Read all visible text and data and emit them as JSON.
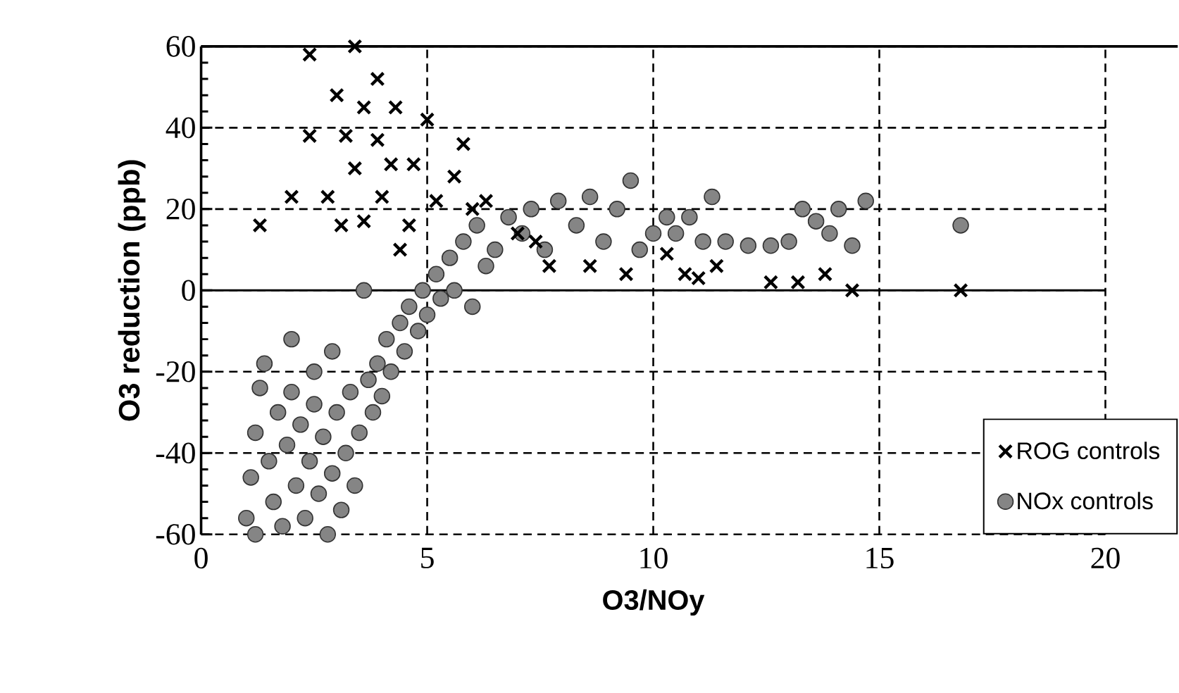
{
  "chart_data": {
    "type": "scatter",
    "xlabel": "O3/NOy",
    "ylabel": "O3 reduction  (ppb)",
    "xlim": [
      0,
      20
    ],
    "ylim": [
      -60,
      60
    ],
    "xticks": [
      0,
      5,
      10,
      15,
      20
    ],
    "yticks": [
      -60,
      -40,
      -20,
      0,
      20,
      40,
      60
    ],
    "grid": true,
    "legend": "bottom right",
    "ref_lines": [
      {
        "axis": "y",
        "value": 0,
        "color": "#000000",
        "line_style": "solid"
      }
    ],
    "series": [
      {
        "name": "ROG controls",
        "color": "#000000",
        "marker": "cross",
        "x": [
          1.3,
          2.0,
          2.4,
          2.4,
          2.8,
          3.0,
          3.1,
          3.2,
          3.4,
          3.4,
          3.6,
          3.6,
          3.9,
          3.9,
          4.0,
          4.2,
          4.3,
          4.4,
          4.6,
          4.7,
          5.0,
          5.2,
          5.6,
          5.8,
          6.0,
          6.3,
          7.0,
          7.4,
          7.7,
          8.6,
          9.4,
          10.3,
          10.7,
          11.0,
          11.4,
          12.6,
          13.2,
          13.8,
          14.4,
          16.8
        ],
        "values": [
          16,
          23,
          38,
          58,
          23,
          48,
          16,
          38,
          60,
          30,
          17,
          45,
          52,
          37,
          23,
          31,
          45,
          10,
          16,
          31,
          42,
          22,
          28,
          36,
          20,
          22,
          14,
          12,
          6,
          6,
          4,
          9,
          4,
          3,
          6,
          2,
          2,
          4,
          0,
          0
        ]
      },
      {
        "name": "NOx controls",
        "color": "#333333",
        "marker": "circle",
        "x": [
          1.0,
          1.1,
          1.2,
          1.2,
          1.3,
          1.4,
          1.5,
          1.6,
          1.7,
          1.8,
          1.9,
          2.0,
          2.0,
          2.1,
          2.2,
          2.3,
          2.4,
          2.5,
          2.5,
          2.6,
          2.7,
          2.8,
          2.9,
          2.9,
          3.0,
          3.1,
          3.2,
          3.3,
          3.4,
          3.5,
          3.6,
          3.7,
          3.8,
          3.9,
          4.0,
          4.1,
          4.2,
          4.4,
          4.5,
          4.6,
          4.8,
          4.9,
          5.0,
          5.2,
          5.3,
          5.5,
          5.6,
          5.8,
          6.0,
          6.1,
          6.3,
          6.5,
          6.8,
          7.1,
          7.3,
          7.6,
          7.9,
          8.3,
          8.6,
          8.9,
          9.2,
          9.5,
          9.7,
          10.0,
          10.3,
          10.5,
          10.8,
          11.1,
          11.3,
          11.6,
          12.1,
          12.6,
          13.0,
          13.3,
          13.6,
          13.9,
          14.1,
          14.4,
          14.7,
          16.8
        ],
        "values": [
          -56,
          -46,
          -60,
          -35,
          -24,
          -18,
          -42,
          -52,
          -30,
          -58,
          -38,
          -25,
          -12,
          -48,
          -33,
          -56,
          -42,
          -28,
          -20,
          -50,
          -36,
          -60,
          -15,
          -45,
          -30,
          -54,
          -40,
          -25,
          -48,
          -35,
          0,
          -22,
          -30,
          -18,
          -26,
          -12,
          -20,
          -8,
          -15,
          -4,
          -10,
          0,
          -6,
          4,
          -2,
          8,
          0,
          12,
          -4,
          16,
          6,
          10,
          18,
          14,
          20,
          10,
          22,
          16,
          23,
          12,
          20,
          27,
          10,
          14,
          18,
          14,
          18,
          12,
          23,
          12,
          11,
          11,
          12,
          20,
          17,
          14,
          20,
          11,
          22,
          16
        ]
      }
    ]
  }
}
